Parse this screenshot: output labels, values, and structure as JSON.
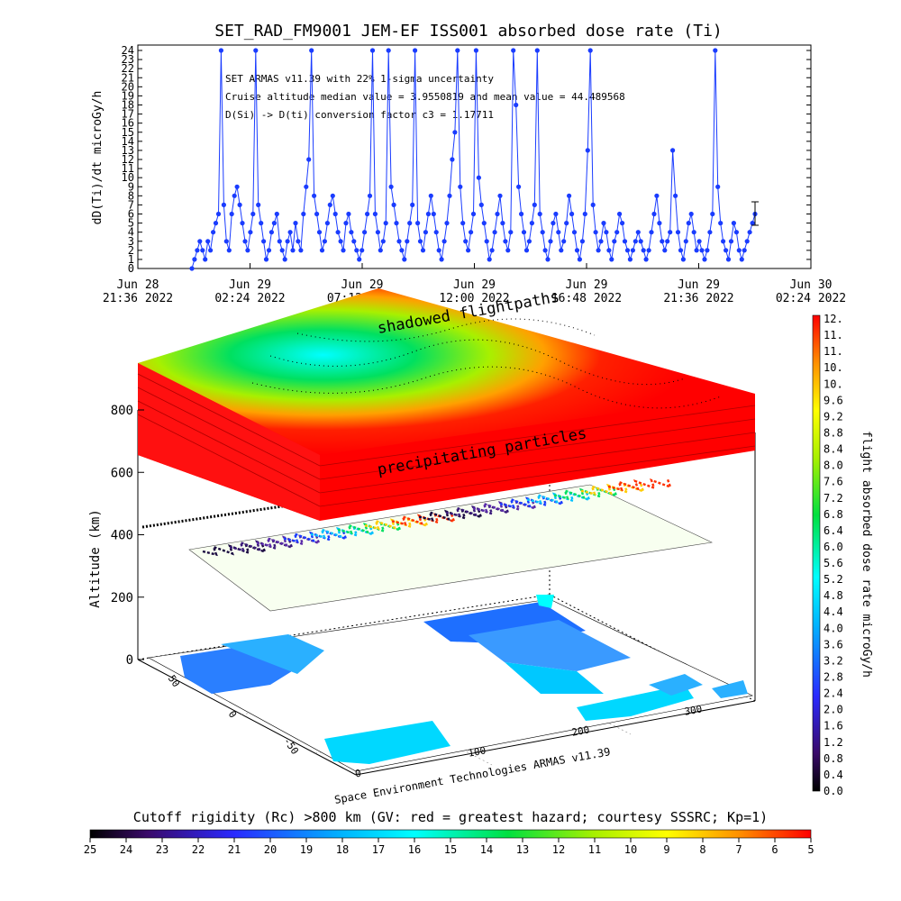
{
  "top_chart": {
    "title": "SET_RAD_FM9001  JEM-EF ISS001 absorbed dose rate (Ti)",
    "ylabel": "dD(Ti)/dt microGy/h",
    "annotations": [
      "SET ARMAS v11.39 with 22% 1-sigma uncertainty",
      "Cruise altitude median value = 3.9550819 and mean value = 44.489568",
      "D(Si) -> D(ti) conversion factor c3 = 1.17711"
    ],
    "x_ticks": [
      {
        "day": "Jun 28",
        "time": "21:36 2022"
      },
      {
        "day": "Jun 29",
        "time": "02:24 2022"
      },
      {
        "day": "Jun 29",
        "time": "07:12 2022"
      },
      {
        "day": "Jun 29",
        "time": "12:00 2022"
      },
      {
        "day": "Jun 29",
        "time": "16:48 2022"
      },
      {
        "day": "Jun 29",
        "time": "21:36 2022"
      },
      {
        "day": "Jun 30",
        "time": "02:24 2022"
      }
    ],
    "y_ticks": [
      "0",
      "1",
      "2",
      "3",
      "4",
      "5",
      "6",
      "7",
      "8",
      "9",
      "10",
      "11",
      "12",
      "13",
      "14",
      "15",
      "16",
      "17",
      "18",
      "19",
      "20",
      "21",
      "22",
      "23",
      "24"
    ],
    "series_color": "#1a3cff"
  },
  "chart_data": {
    "type": "line",
    "x_range": [
      "2022-06-28T21:36",
      "2022-06-30T02:24"
    ],
    "ylim": [
      0,
      24
    ],
    "y": [
      0,
      1,
      2,
      3,
      2,
      1,
      3,
      2,
      4,
      5,
      6,
      24,
      7,
      3,
      2,
      6,
      8,
      9,
      7,
      5,
      3,
      2,
      4,
      6,
      24,
      7,
      5,
      3,
      1,
      2,
      4,
      5,
      6,
      3,
      2,
      1,
      3,
      4,
      2,
      5,
      3,
      2,
      6,
      9,
      12,
      24,
      8,
      6,
      4,
      2,
      3,
      5,
      7,
      8,
      6,
      4,
      3,
      2,
      5,
      6,
      4,
      3,
      2,
      1,
      2,
      4,
      6,
      8,
      24,
      6,
      4,
      2,
      3,
      5,
      24,
      9,
      7,
      5,
      3,
      2,
      1,
      3,
      5,
      7,
      24,
      5,
      3,
      2,
      4,
      6,
      8,
      6,
      4,
      2,
      1,
      3,
      5,
      8,
      12,
      15,
      24,
      9,
      5,
      3,
      2,
      4,
      6,
      24,
      10,
      7,
      5,
      3,
      1,
      2,
      4,
      6,
      8,
      5,
      3,
      2,
      4,
      24,
      18,
      9,
      6,
      4,
      2,
      3,
      5,
      7,
      24,
      6,
      4,
      2,
      1,
      3,
      5,
      6,
      4,
      2,
      3,
      5,
      8,
      6,
      4,
      2,
      1,
      3,
      6,
      13,
      24,
      7,
      4,
      2,
      3,
      5,
      4,
      2,
      1,
      3,
      4,
      6,
      5,
      3,
      2,
      1,
      2,
      3,
      4,
      3,
      2,
      1,
      2,
      4,
      6,
      8,
      5,
      3,
      2,
      3,
      4,
      13,
      8,
      4,
      2,
      1,
      3,
      5,
      6,
      4,
      2,
      3,
      2,
      1,
      2,
      4,
      6,
      24,
      9,
      5,
      3,
      2,
      1,
      3,
      5,
      4,
      2,
      1,
      2,
      3,
      4,
      5,
      6
    ]
  },
  "map_panel": {
    "label_shadowed": "shadowed flightpaths",
    "label_precip": "precipitating particles",
    "altitude_label": "Altitude (km)",
    "altitude_ticks": [
      "0",
      "200",
      "400",
      "600",
      "800"
    ],
    "lat_ticks": [
      "50",
      "0",
      "-50"
    ],
    "lon_ticks": [
      "0",
      "100",
      "200",
      "300"
    ],
    "credit": "Space Environment Technologies ARMAS v11.39"
  },
  "colorbar_right": {
    "label": "flight absorbed dose rate microGy/h",
    "ticks": [
      "12.",
      "11.",
      "11.",
      "10.",
      "10.",
      "9.6",
      "9.2",
      "8.8",
      "8.4",
      "8.0",
      "7.6",
      "7.2",
      "6.8",
      "6.4",
      "6.0",
      "5.6",
      "5.2",
      "4.8",
      "4.4",
      "4.0",
      "3.6",
      "3.2",
      "2.8",
      "2.4",
      "2.0",
      "1.6",
      "1.2",
      "0.8",
      "0.4",
      "0.0"
    ]
  },
  "colorbar_bottom": {
    "label": "Cutoff rigidity (Rc) >800 km (GV: red = greatest hazard; courtesy SSSRC; Kp=1)",
    "ticks": [
      "25",
      "24",
      "23",
      "22",
      "21",
      "20",
      "19",
      "18",
      "17",
      "16",
      "15",
      "14",
      "13",
      "12",
      "11",
      "10",
      "9",
      "8",
      "7",
      "6",
      "5"
    ]
  }
}
